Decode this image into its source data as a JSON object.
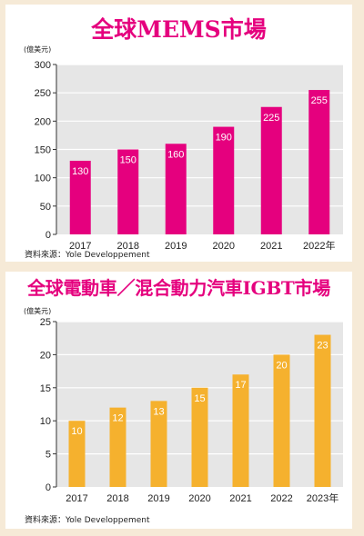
{
  "chart_data": [
    {
      "type": "bar",
      "title": "全球MEMS市場",
      "ylabel": "(億美元)",
      "categories": [
        "2017",
        "2018",
        "2019",
        "2020",
        "2021",
        "2022年"
      ],
      "values": [
        130,
        150,
        160,
        190,
        225,
        255
      ],
      "ylim": [
        0,
        300
      ],
      "yticks": [
        0,
        50,
        100,
        150,
        200,
        250,
        300
      ],
      "data_labels": [
        "130",
        "150",
        "160",
        "190",
        "225",
        "255"
      ],
      "grid": true,
      "source": "資料來源：Yole Developpement",
      "colors": {
        "bar": "#e5007e",
        "plot_bg": "#e6e6e6",
        "grid": "#ffffff",
        "title": "#e5007e"
      }
    },
    {
      "type": "bar",
      "title": "全球電動車／混合動力汽車IGBT市場",
      "ylabel": "(億美元)",
      "categories": [
        "2017",
        "2018",
        "2019",
        "2020",
        "2021",
        "2022",
        "2023年"
      ],
      "values": [
        10,
        12,
        13,
        15,
        17,
        20,
        23
      ],
      "ylim": [
        0,
        25
      ],
      "yticks": [
        0,
        5,
        10,
        15,
        20,
        25
      ],
      "data_labels": [
        "10",
        "12",
        "13",
        "15",
        "17",
        "20",
        "23"
      ],
      "grid": true,
      "source": "資料來源：Yole Developpement",
      "colors": {
        "bar": "#f5b12e",
        "plot_bg": "#e6e6e6",
        "grid": "#ffffff",
        "title": "#e5007e"
      }
    }
  ]
}
